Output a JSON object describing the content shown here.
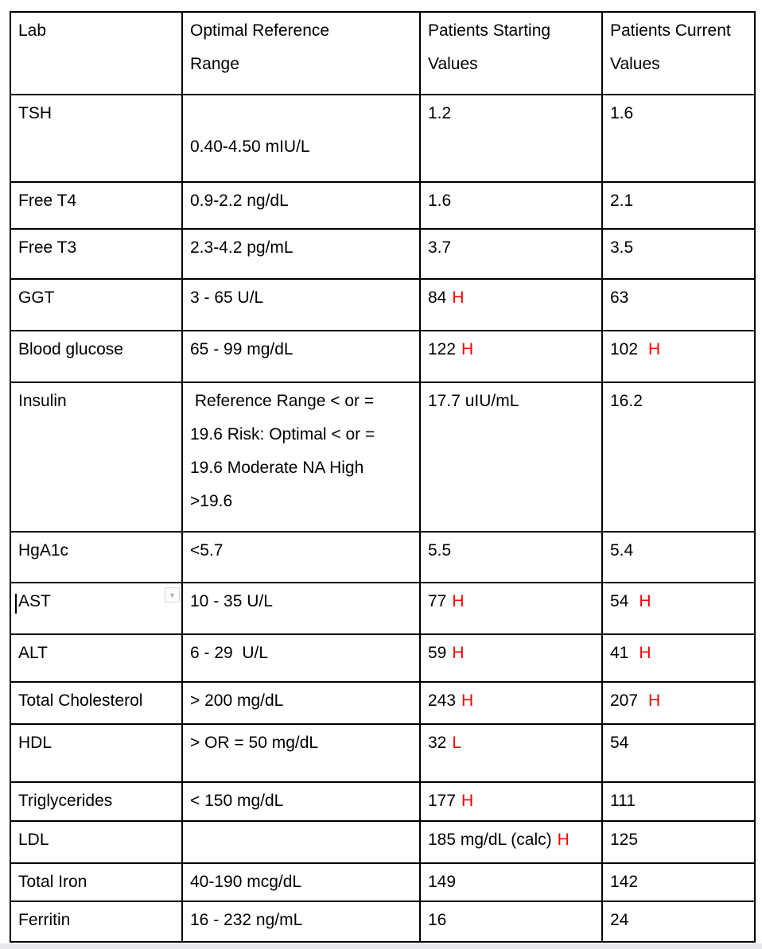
{
  "colors": {
    "flag_red": "#ff0000",
    "table_border": "#000000",
    "text": "#000000",
    "bottom_strip": "#e8e9ed"
  },
  "icons": {
    "cell_dropdown": "▼"
  },
  "table": {
    "columns": [
      "Lab",
      "Optimal Reference\nRange",
      "Patients Starting\nValues",
      "Patients Current\nValues"
    ],
    "rows": [
      {
        "lab": "TSH",
        "range": "\n0.40-4.50 mIU/L",
        "start": {
          "value": "1.2",
          "flag": ""
        },
        "current": {
          "value": "1.6",
          "flag": ""
        }
      },
      {
        "lab": "Free T4",
        "range": "0.9-2.2 ng/dL",
        "start": {
          "value": "1.6",
          "flag": ""
        },
        "current": {
          "value": "2.1",
          "flag": ""
        }
      },
      {
        "lab": "Free T3",
        "range": "2.3-4.2 pg/mL",
        "start": {
          "value": "3.7",
          "flag": ""
        },
        "current": {
          "value": "3.5",
          "flag": ""
        }
      },
      {
        "lab": "GGT",
        "range": "3 - 65 U/L",
        "start": {
          "value": "84",
          "flag": "H"
        },
        "current": {
          "value": "63",
          "flag": ""
        }
      },
      {
        "lab": "Blood glucose",
        "range": "65 - 99 mg/dL",
        "start": {
          "value": "122",
          "flag": "H"
        },
        "current": {
          "value": "102",
          "flag": "H"
        }
      },
      {
        "lab": "Insulin",
        "range": " Reference Range < or =\n19.6 Risk: Optimal < or =\n19.6 Moderate NA High\n>19.6",
        "start": {
          "value": "17.7 uIU/mL",
          "flag": ""
        },
        "current": {
          "value": "16.2",
          "flag": ""
        }
      },
      {
        "lab": "HgA1c",
        "range": "<5.7",
        "start": {
          "value": "5.5",
          "flag": ""
        },
        "current": {
          "value": "5.4",
          "flag": ""
        }
      },
      {
        "lab": "AST",
        "range": "10 - 35 U/L",
        "start": {
          "value": "77",
          "flag": "H"
        },
        "current": {
          "value": "54",
          "flag": "H"
        }
      },
      {
        "lab": "ALT",
        "range": "6 - 29  U/L",
        "start": {
          "value": "59",
          "flag": "H"
        },
        "current": {
          "value": "41",
          "flag": "H"
        }
      },
      {
        "lab": "Total Cholesterol",
        "range": "> 200 mg/dL",
        "start": {
          "value": "243",
          "flag": "H"
        },
        "current": {
          "value": "207",
          "flag": "H"
        }
      },
      {
        "lab": "HDL",
        "range": "> OR = 50 mg/dL",
        "start": {
          "value": "32",
          "flag": "L"
        },
        "current": {
          "value": "54",
          "flag": ""
        }
      },
      {
        "lab": "Triglycerides",
        "range": "< 150 mg/dL",
        "start": {
          "value": "177",
          "flag": "H"
        },
        "current": {
          "value": "111",
          "flag": ""
        }
      },
      {
        "lab": "LDL",
        "range": "",
        "start": {
          "value": "185 mg/dL (calc)",
          "flag": "H"
        },
        "current": {
          "value": "125",
          "flag": ""
        }
      },
      {
        "lab": "Total Iron",
        "range": "40-190 mcg/dL",
        "start": {
          "value": "149",
          "flag": ""
        },
        "current": {
          "value": "142",
          "flag": ""
        }
      },
      {
        "lab": "Ferritin",
        "range": "16 - 232 ng/mL",
        "start": {
          "value": "16",
          "flag": ""
        },
        "current": {
          "value": "24",
          "flag": ""
        }
      }
    ]
  }
}
